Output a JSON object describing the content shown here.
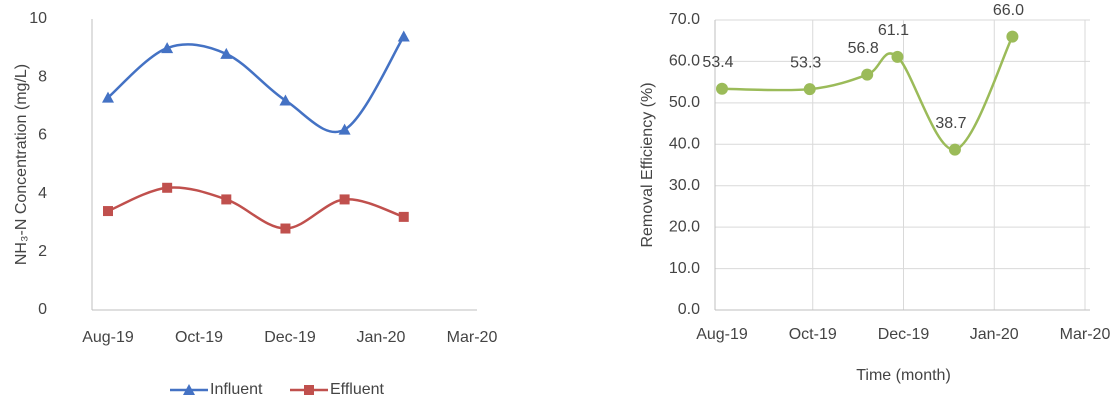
{
  "chart_data": [
    {
      "type": "line",
      "y_label": "NH₃-N Concentration (mg/L)",
      "x": [
        43678,
        43717,
        43756,
        43795,
        43834,
        43873
      ],
      "xlim": [
        43678,
        43918
      ],
      "xticks": [
        {
          "value": 43678,
          "label": "Aug-19"
        },
        {
          "value": 43738,
          "label": "Oct-19"
        },
        {
          "value": 43798,
          "label": "Dec-19"
        },
        {
          "value": 43858,
          "label": "Jan-20"
        },
        {
          "value": 43918,
          "label": "Mar-20"
        }
      ],
      "ylim": [
        0,
        10
      ],
      "yticks": [
        0,
        2,
        4,
        6,
        8,
        10
      ],
      "grid": false,
      "legend": "bottom",
      "series": [
        {
          "name": "Influent",
          "color": "#4472c4",
          "marker": "triangle",
          "values": [
            7.3,
            9.0,
            8.8,
            7.2,
            6.2,
            9.4
          ]
        },
        {
          "name": "Effluent",
          "color": "#c0504d",
          "marker": "square",
          "values": [
            3.4,
            4.2,
            3.8,
            2.8,
            3.8,
            3.2
          ]
        }
      ]
    },
    {
      "type": "line",
      "y_label": "Removal Efficiency (%)",
      "x_label": "Time (month)",
      "x": [
        43678,
        43736,
        43774,
        43794,
        43832,
        43870
      ],
      "xlim": [
        43678,
        43918
      ],
      "xticks": [
        {
          "value": 43678,
          "label": "Aug-19"
        },
        {
          "value": 43738,
          "label": "Oct-19"
        },
        {
          "value": 43798,
          "label": "Dec-19"
        },
        {
          "value": 43858,
          "label": "Jan-20"
        },
        {
          "value": 43918,
          "label": "Mar-20"
        }
      ],
      "ylim": [
        0,
        70
      ],
      "yticks": [
        {
          "value": 0,
          "label": "0.0"
        },
        {
          "value": 10,
          "label": "10.0"
        },
        {
          "value": 20,
          "label": "20.0"
        },
        {
          "value": 30,
          "label": "30.0"
        },
        {
          "value": 40,
          "label": "40.0"
        },
        {
          "value": 50,
          "label": "50.0"
        },
        {
          "value": 60,
          "label": "60.0"
        },
        {
          "value": 70,
          "label": "70.0"
        }
      ],
      "grid": true,
      "series": [
        {
          "name": "Removal Efficiency",
          "color": "#9bbb59",
          "marker": "circle",
          "values": [
            53.4,
            53.3,
            56.8,
            61.1,
            38.7,
            66.0
          ],
          "value_labels": [
            "53.4",
            "53.3",
            "56.8",
            "61.1",
            "38.7",
            "66.0"
          ]
        }
      ]
    }
  ]
}
